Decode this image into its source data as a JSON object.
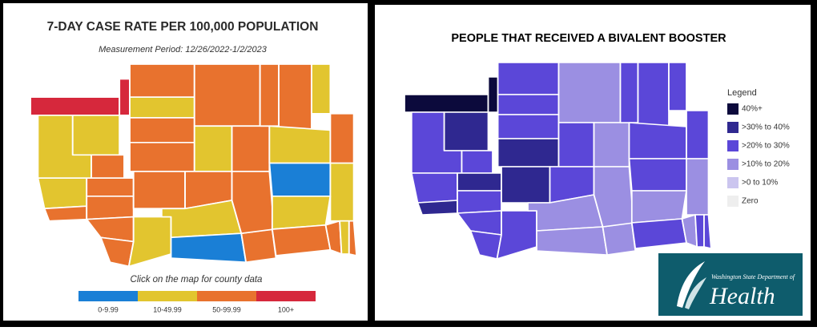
{
  "left_panel": {
    "title": "7-DAY CASE RATE PER 100,000 POPULATION",
    "subtitle": "Measurement Period: 12/26/2022-1/2/2023",
    "note": "Click on the map for county data",
    "legend": [
      {
        "label": "0-9.99",
        "color": "#1a7fd6"
      },
      {
        "label": "10-49.99",
        "color": "#e2c52f"
      },
      {
        "label": "50-99.99",
        "color": "#e8722e"
      },
      {
        "label": "100+",
        "color": "#d6283c"
      }
    ]
  },
  "right_panel": {
    "title": "PEOPLE THAT RECEIVED A BIVALENT BOOSTER",
    "legend_title": "Legend",
    "legend": [
      {
        "label": "40%+",
        "color": "#0c0a3c"
      },
      {
        "label": ">30% to 40%",
        "color": "#2f2890"
      },
      {
        "label": ">20% to 30%",
        "color": "#5b47d8"
      },
      {
        "label": ">10% to 20%",
        "color": "#9b8fe2"
      },
      {
        "label": ">0 to 10%",
        "color": "#cbc5ef"
      },
      {
        "label": "Zero",
        "color": "#eeeeee"
      }
    ]
  },
  "logo": {
    "line1": "Washington State Department of",
    "line2": "Health"
  }
}
